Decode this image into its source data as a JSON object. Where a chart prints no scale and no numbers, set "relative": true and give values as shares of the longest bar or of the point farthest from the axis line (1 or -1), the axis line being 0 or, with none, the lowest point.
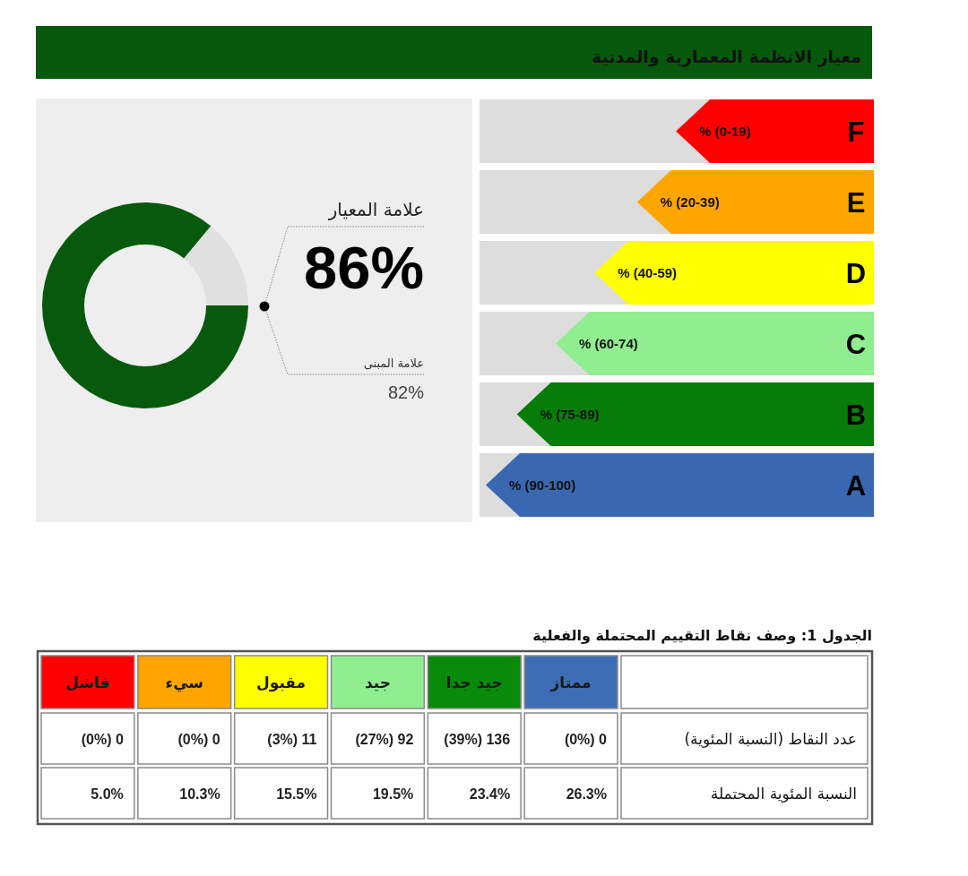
{
  "chart_data": [
    {
      "type": "donut",
      "categories": [
        null,
        null
      ],
      "values": [
        86,
        14
      ],
      "colors": [
        "#075a0d",
        "#dfe0df"
      ],
      "value_labels": [
        "86%",
        null
      ],
      "annotations": [
        "علامة المعيار",
        "علامة المبنى",
        "82%"
      ]
    },
    {
      "type": "bar",
      "orientation": "horizontal",
      "relative": true,
      "title": "معيار الانظمة المعمارية والمدنية",
      "categories": [
        "F",
        "E",
        "D",
        "C",
        "B",
        "A"
      ],
      "values": [
        0.51,
        0.61,
        0.72,
        0.82,
        0.92,
        1
      ],
      "colors": [
        "#ff0000",
        "#ffa500",
        "#ffff00",
        "#90ee90",
        "#087c08",
        "#3a68b0"
      ],
      "annotations": [
        "% (0-19)",
        "% (20-39)",
        "% (40-59)",
        "% (60-74)",
        "% (75-89)",
        "% (90-100)"
      ]
    },
    {
      "type": "other",
      "title": "الجدول 1: وصف نقاط التقييم المحتملة والفعلية",
      "categories": [
        "فاشل",
        "سيء",
        "مقبول",
        "جيد",
        "جيد جدا",
        "ممتاز"
      ],
      "colors": [
        "#ff0000",
        "#ffa500",
        "#ffff00",
        "#90ee90",
        "#0a8a0a",
        "#3d6db5"
      ],
      "y2_categories": [
        "عدد النقاط (النسبة المئوية)",
        "النسبة المئوية المحتملة"
      ],
      "cell_labels": [
        [
          "(0%) 0",
          "(0%) 0",
          "(3%) 11",
          "(27%) 92",
          "(39%) 136",
          "(0%) 0"
        ],
        [
          "5.0%",
          "10.3%",
          "15.5%",
          "19.5%",
          "23.4%",
          "26.3%"
        ]
      ]
    }
  ]
}
